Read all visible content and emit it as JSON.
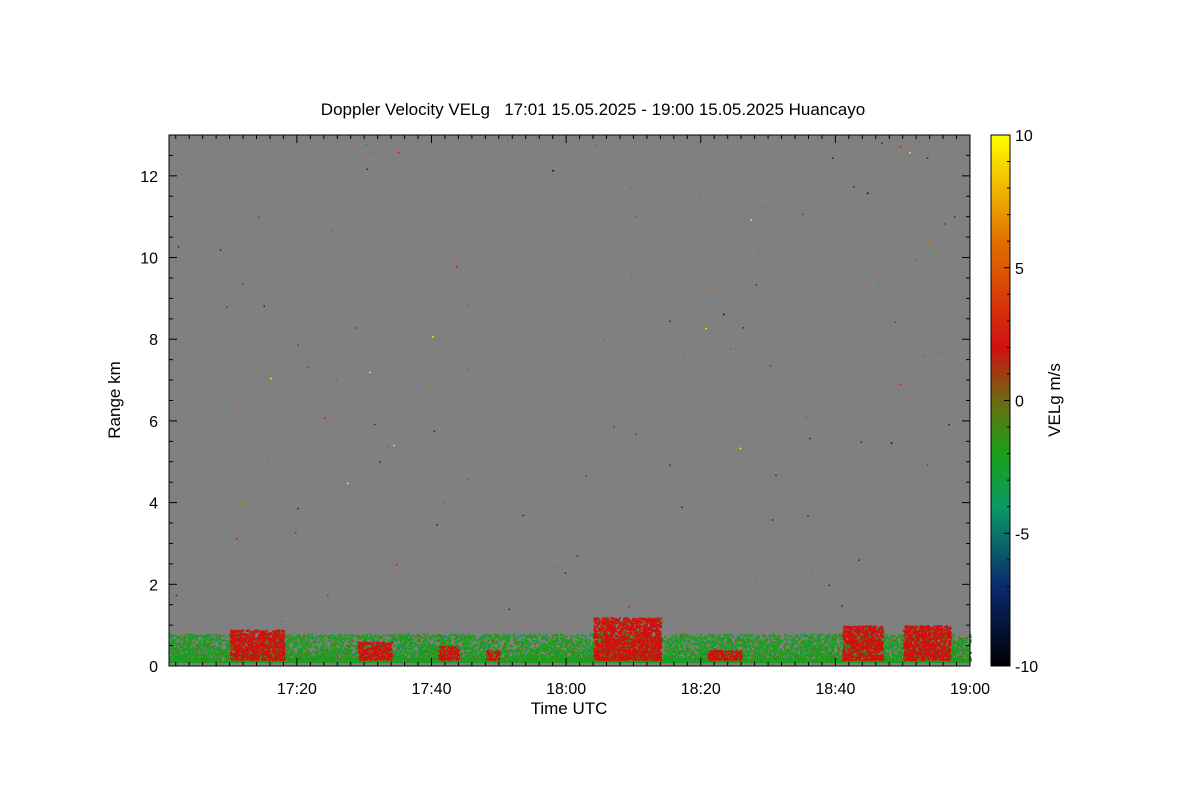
{
  "chart_data": {
    "type": "heatmap",
    "title": "Doppler Velocity VELg   17:01 15.05.2025 - 19:00 15.05.2025 Huancayo",
    "xlabel": "Time UTC",
    "ylabel": "Range km",
    "colorbar_label": "VELg m/s",
    "x_time_range": [
      "17:01",
      "19:00"
    ],
    "xlim_minutes_after_1700": [
      1,
      120
    ],
    "ylim": [
      0,
      13
    ],
    "x_ticks": [
      "17:20",
      "17:40",
      "18:00",
      "18:20",
      "18:40",
      "19:00"
    ],
    "y_ticks": [
      "0",
      "2",
      "4",
      "6",
      "8",
      "10",
      "12"
    ],
    "colorbar_ticks": [
      "10",
      "5",
      "0",
      "-5",
      "-10"
    ],
    "colorbar_range": [
      -10,
      10
    ],
    "colorscale": [
      {
        "value": -10,
        "color": "#000000"
      },
      {
        "value": -7,
        "color": "#0a2a6e"
      },
      {
        "value": -4,
        "color": "#0a9a64"
      },
      {
        "value": -2,
        "color": "#1aa01a"
      },
      {
        "value": 0,
        "color": "#6b6b10"
      },
      {
        "value": 2,
        "color": "#d01010"
      },
      {
        "value": 6,
        "color": "#e07000"
      },
      {
        "value": 10,
        "color": "#ffff00"
      }
    ],
    "background_color": "#808080",
    "grid": false,
    "echo_regions": [
      {
        "t_start": "17:01",
        "t_end": "19:00",
        "range_top_km": 0.8,
        "dominant": "green",
        "velocity_approx": -2
      },
      {
        "t_start": "17:10",
        "t_end": "17:18",
        "range_top_km": 0.9,
        "dominant": "red",
        "velocity_approx": 2
      },
      {
        "t_start": "17:29",
        "t_end": "17:34",
        "range_top_km": 0.6,
        "dominant": "red",
        "velocity_approx": 2
      },
      {
        "t_start": "17:41",
        "t_end": "17:44",
        "range_top_km": 0.5,
        "dominant": "red",
        "velocity_approx": 2
      },
      {
        "t_start": "17:48",
        "t_end": "17:50",
        "range_top_km": 0.4,
        "dominant": "red",
        "velocity_approx": 2
      },
      {
        "t_start": "18:04",
        "t_end": "18:14",
        "range_top_km": 1.2,
        "dominant": "red",
        "velocity_approx": 2
      },
      {
        "t_start": "18:21",
        "t_end": "18:26",
        "range_top_km": 0.4,
        "dominant": "red",
        "velocity_approx": 2
      },
      {
        "t_start": "18:41",
        "t_end": "18:47",
        "range_top_km": 1.0,
        "dominant": "red",
        "velocity_approx": 2
      },
      {
        "t_start": "18:50",
        "t_end": "18:57",
        "range_top_km": 1.0,
        "dominant": "red",
        "velocity_approx": 2
      }
    ]
  }
}
